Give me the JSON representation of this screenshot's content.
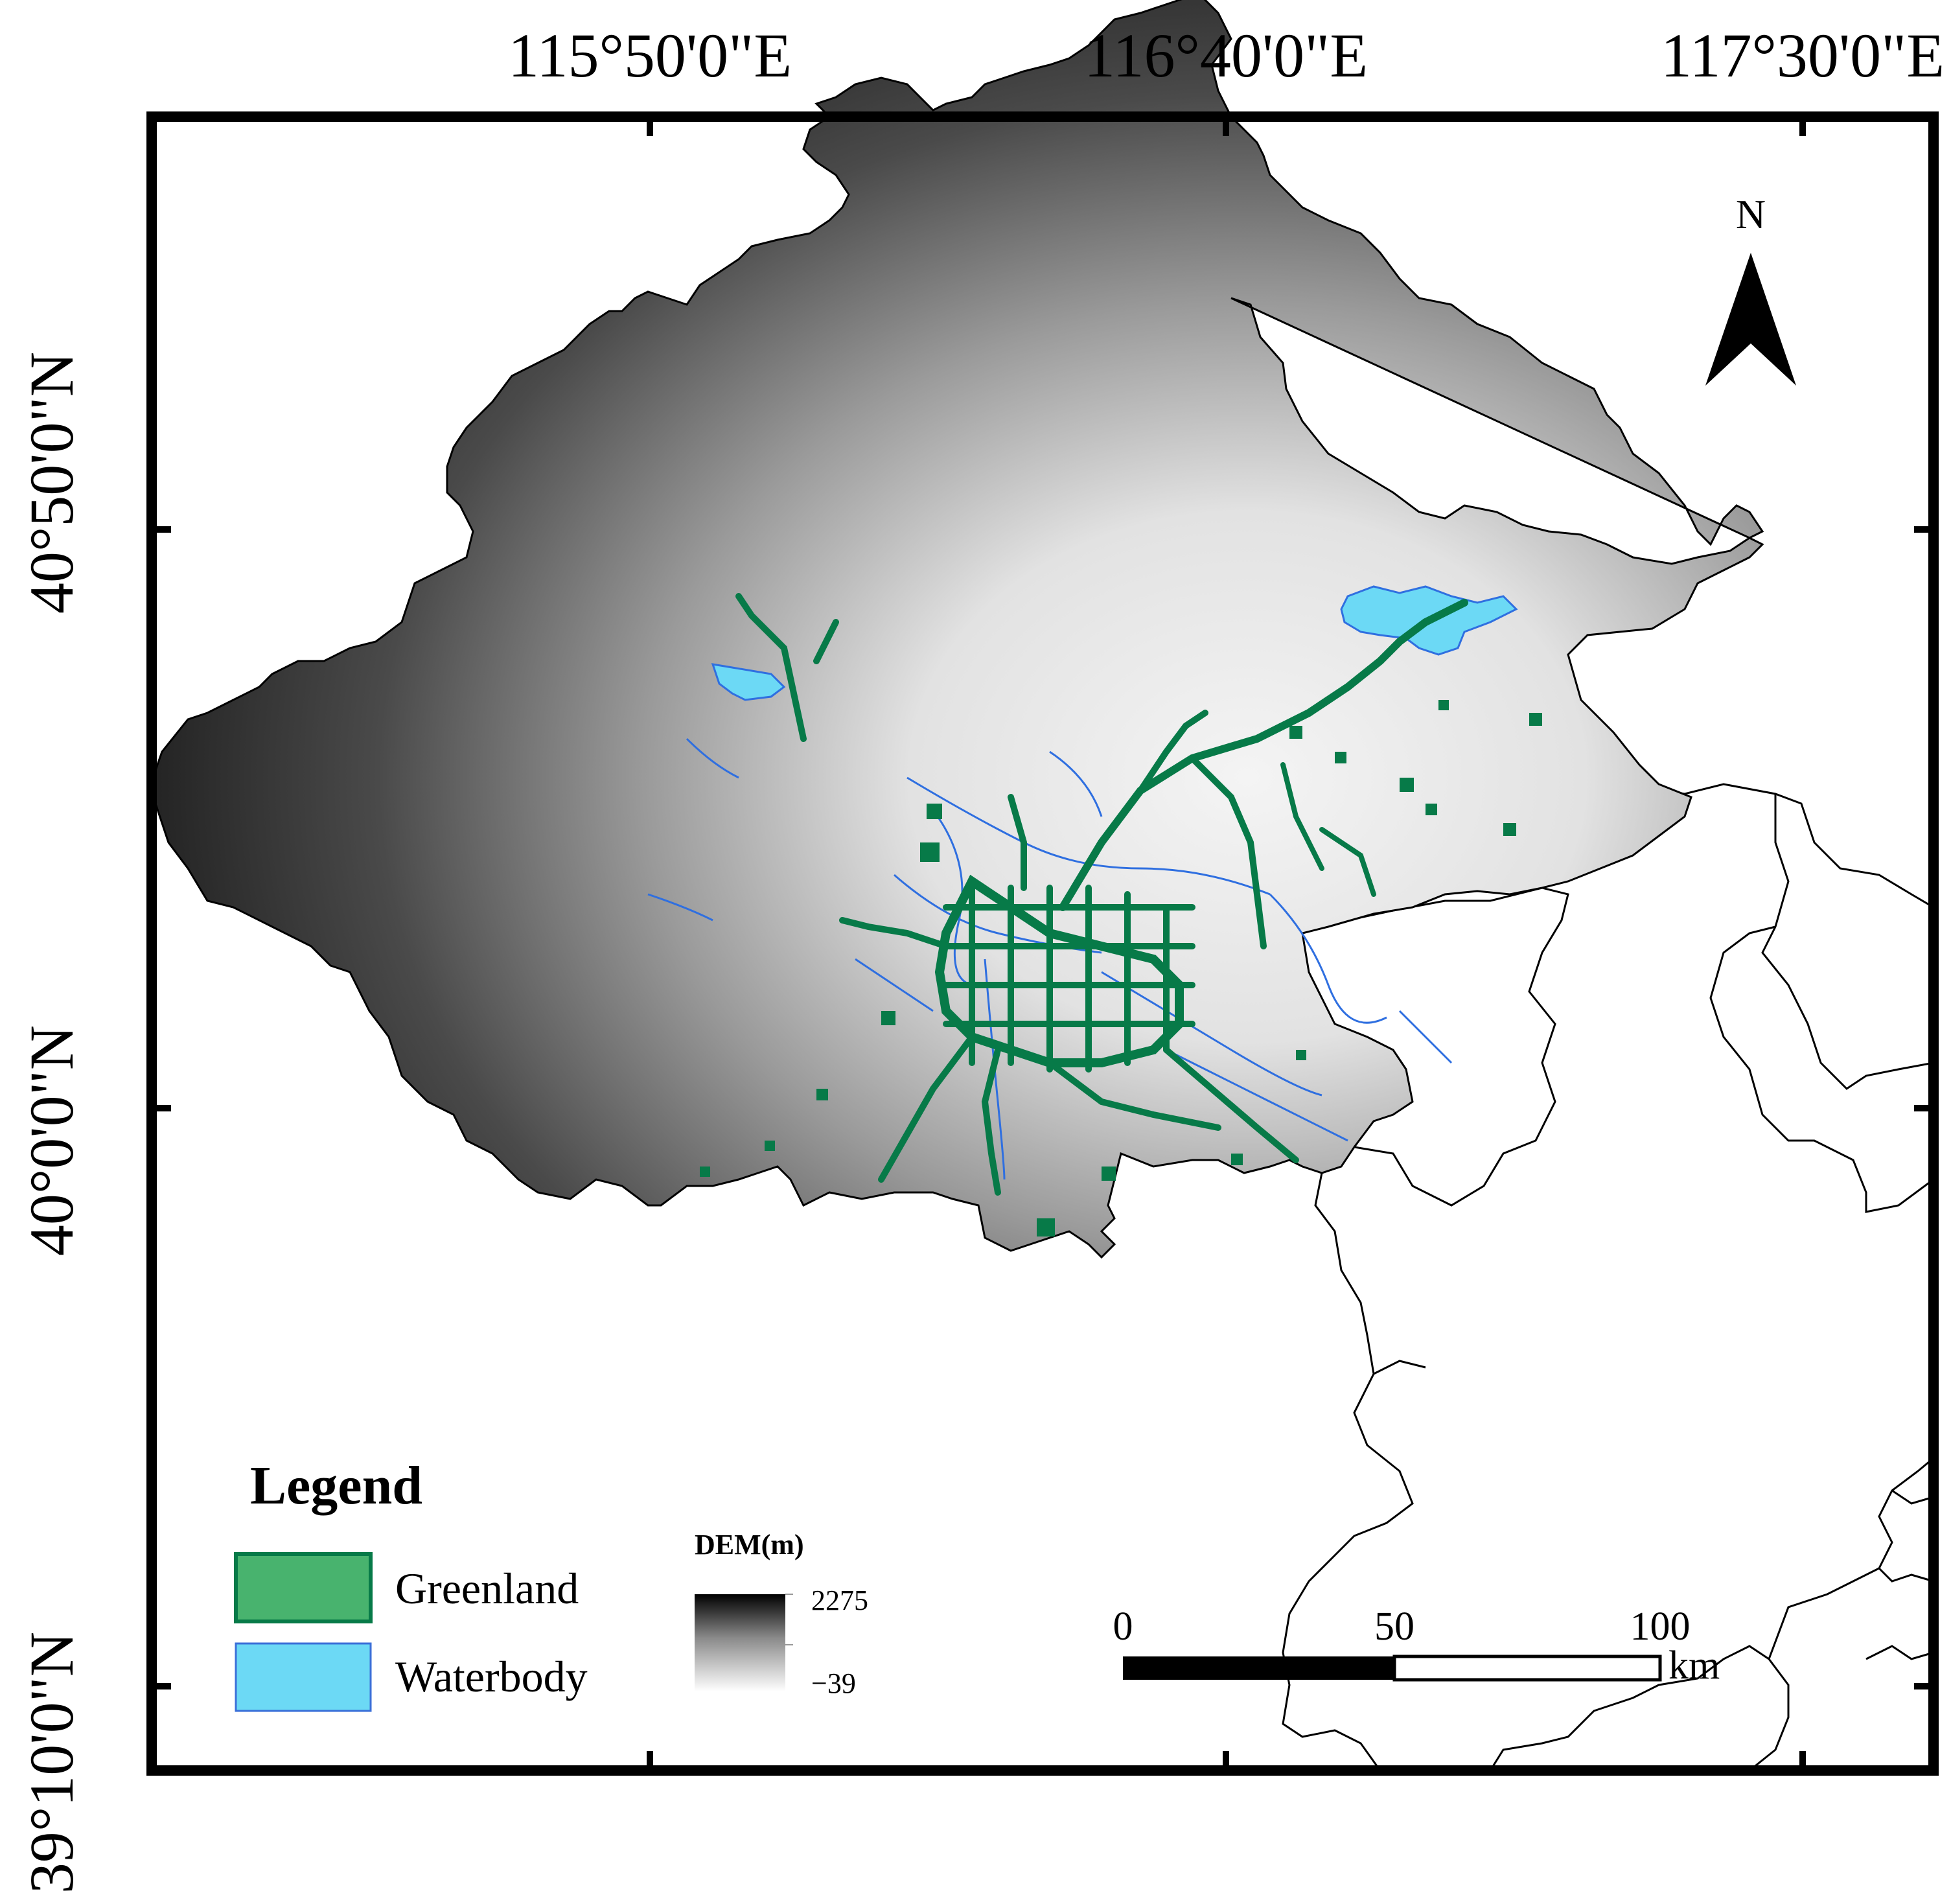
{
  "map": {
    "longitude_labels": [
      "115°50'0\"E",
      "116°40'0\"E",
      "117°30'0\"E"
    ],
    "latitude_labels": [
      "40°50'0\"N",
      "40°0'0\"N",
      "39°10'0\"N"
    ],
    "north_arrow": {
      "label": "N",
      "icon": "north-arrow-icon"
    },
    "legend": {
      "title": "Legend",
      "items": [
        {
          "label": "Greenland",
          "color": "#48b36e",
          "border": "#077a48"
        },
        {
          "label": "Waterbody",
          "color": "#6cd9f5",
          "border": "#3a6fd8"
        }
      ]
    },
    "dem": {
      "title": "DEM(m)",
      "max": "2275",
      "min": "−39"
    },
    "scale_bar": {
      "ticks": [
        "0",
        "50",
        "100"
      ],
      "unit": "km"
    },
    "colors": {
      "greenland": "#077a48",
      "water": "#2f6fe0",
      "frame": "#000000"
    }
  }
}
